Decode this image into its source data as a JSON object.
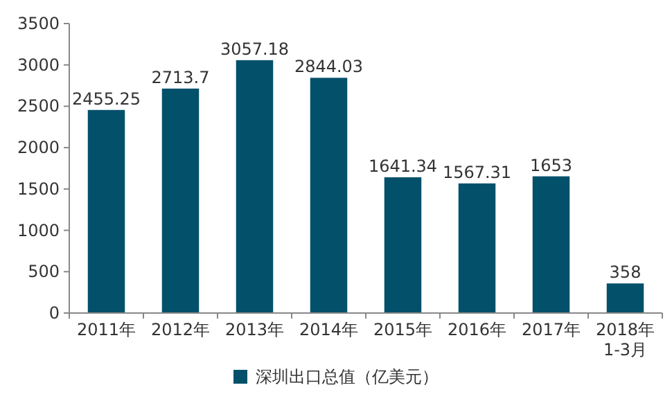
{
  "chart_data": {
    "type": "bar",
    "categories": [
      "2011年",
      "2012年",
      "2013年",
      "2014年",
      "2015年",
      "2016年",
      "2017年",
      "2018年\n1-3月"
    ],
    "series": [
      {
        "name": "深圳出口总值（亿美元）",
        "color": "#03506b",
        "values": [
          2455.25,
          2713.7,
          3057.18,
          2844.03,
          1641.34,
          1567.31,
          1653,
          358
        ]
      }
    ],
    "ylim": [
      0,
      3500
    ],
    "yticks": [
      0,
      500,
      1000,
      1500,
      2000,
      2500,
      3000,
      3500
    ],
    "data_labels": true,
    "legend": "bottom",
    "grid": false
  }
}
